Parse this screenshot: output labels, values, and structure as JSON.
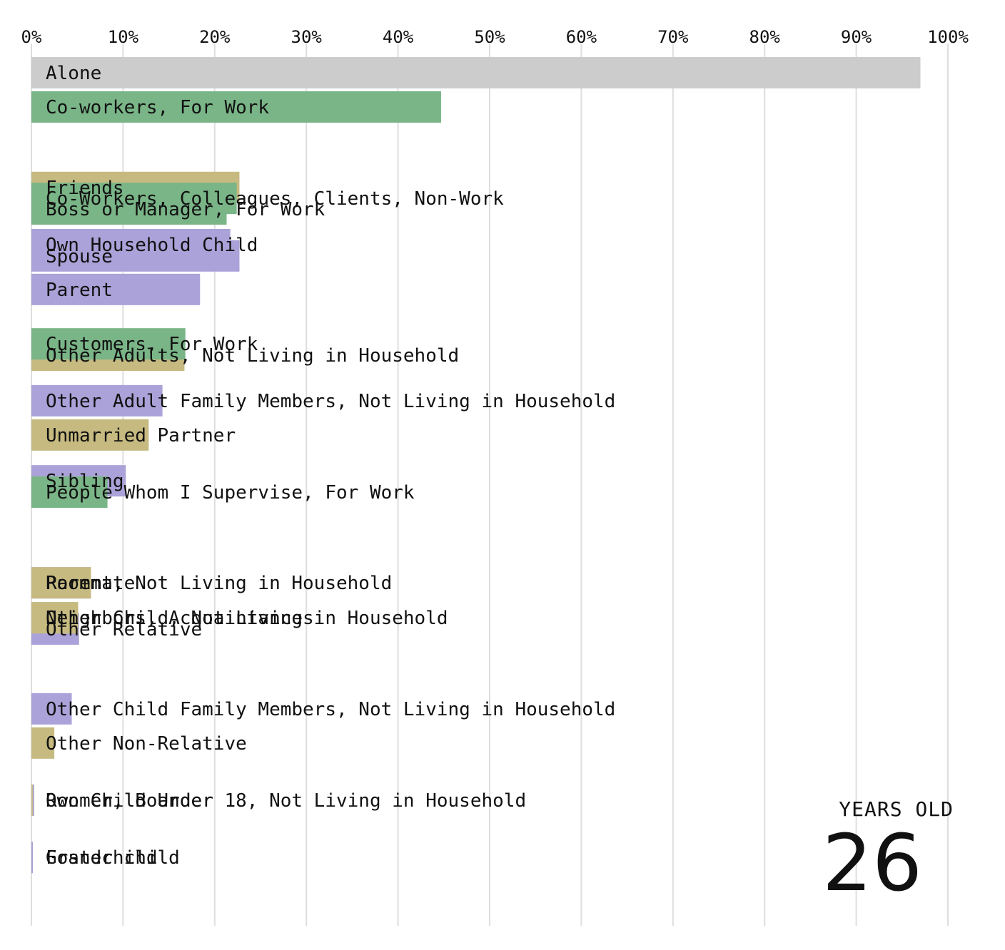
{
  "chart_data": {
    "type": "bar",
    "orientation": "horizontal",
    "x_unit": "percent",
    "xlim": [
      0,
      100
    ],
    "x_ticks": [
      "0%",
      "10%",
      "20%",
      "30%",
      "40%",
      "50%",
      "60%",
      "70%",
      "80%",
      "90%",
      "100%"
    ],
    "grid": true,
    "colors": {
      "none": "#cccccc",
      "work": "#7ab587",
      "family": "#aaa2d8",
      "social": "#c6ba81"
    },
    "bars": [
      {
        "label": "Alone",
        "value": 97.0,
        "group": "none",
        "rank": 0
      },
      {
        "label": "Co-workers, For Work",
        "value": 44.7,
        "group": "work",
        "rank": 1
      },
      {
        "label": "Friends",
        "value": 22.7,
        "group": "social",
        "rank": 3.35
      },
      {
        "label": "Co-Workers, Colleagues, Clients, Non-Work",
        "value": 22.4,
        "group": "work",
        "rank": 3.67
      },
      {
        "label": "Boss or Manager, For Work",
        "value": 21.3,
        "group": "work",
        "rank": 3.98
      },
      {
        "label": "Spouse",
        "value": 22.7,
        "group": "family",
        "rank": 5.35
      },
      {
        "label": "Own Household Child",
        "value": 21.7,
        "group": "family",
        "rank": 5.02
      },
      {
        "label": "Parent",
        "value": 18.4,
        "group": "family",
        "rank": 6.33
      },
      {
        "label": "Other Adults, Not Living in Household",
        "value": 16.7,
        "group": "social",
        "rank": 8.25
      },
      {
        "label": "Customers, For Work",
        "value": 16.8,
        "group": "work",
        "rank": 7.92
      },
      {
        "label": "Other Adult Family Members, Not Living in Household",
        "value": 14.3,
        "group": "family",
        "rank": 9.58
      },
      {
        "label": "Unmarried Partner",
        "value": 12.8,
        "group": "social",
        "rank": 10.58
      },
      {
        "label": "Sibling",
        "value": 10.3,
        "group": "family",
        "rank": 11.92
      },
      {
        "label": "People Whom I Supervise, For Work",
        "value": 8.3,
        "group": "work",
        "rank": 12.25
      },
      {
        "label": "Parent, Not Living in Household",
        "value": 6.5,
        "group": "family",
        "rank": 14.9
      },
      {
        "label": "Roommate",
        "value": 6.5,
        "group": "social",
        "rank": 14.9
      },
      {
        "label": "Other Relative",
        "value": 5.2,
        "group": "family",
        "rank": 16.25
      },
      {
        "label": "Other Child, Not Living in Household",
        "value": 5.1,
        "group": "social",
        "rank": 15.92
      },
      {
        "label": "Neighbors, Acquaintances",
        "value": 5.1,
        "group": "social",
        "rank": 15.92
      },
      {
        "label": "Other Child Family Members, Not Living in Household",
        "value": 4.4,
        "group": "family",
        "rank": 18.58
      },
      {
        "label": "Other Non-Relative",
        "value": 2.5,
        "group": "social",
        "rank": 19.58
      },
      {
        "label": "Own Child Under 18, Not Living in Household",
        "value": 0.3,
        "group": "family",
        "rank": 21.25
      },
      {
        "label": "Roomer, Boarder",
        "value": 0.15,
        "group": "social",
        "rank": 21.25
      },
      {
        "label": "Foster child",
        "value": 0.1,
        "group": "family",
        "rank": 22.92
      },
      {
        "label": "Grandchild",
        "value": 0.1,
        "group": "family",
        "rank": 22.92
      }
    ]
  },
  "age": {
    "caption": "YEARS OLD",
    "value": "26"
  }
}
